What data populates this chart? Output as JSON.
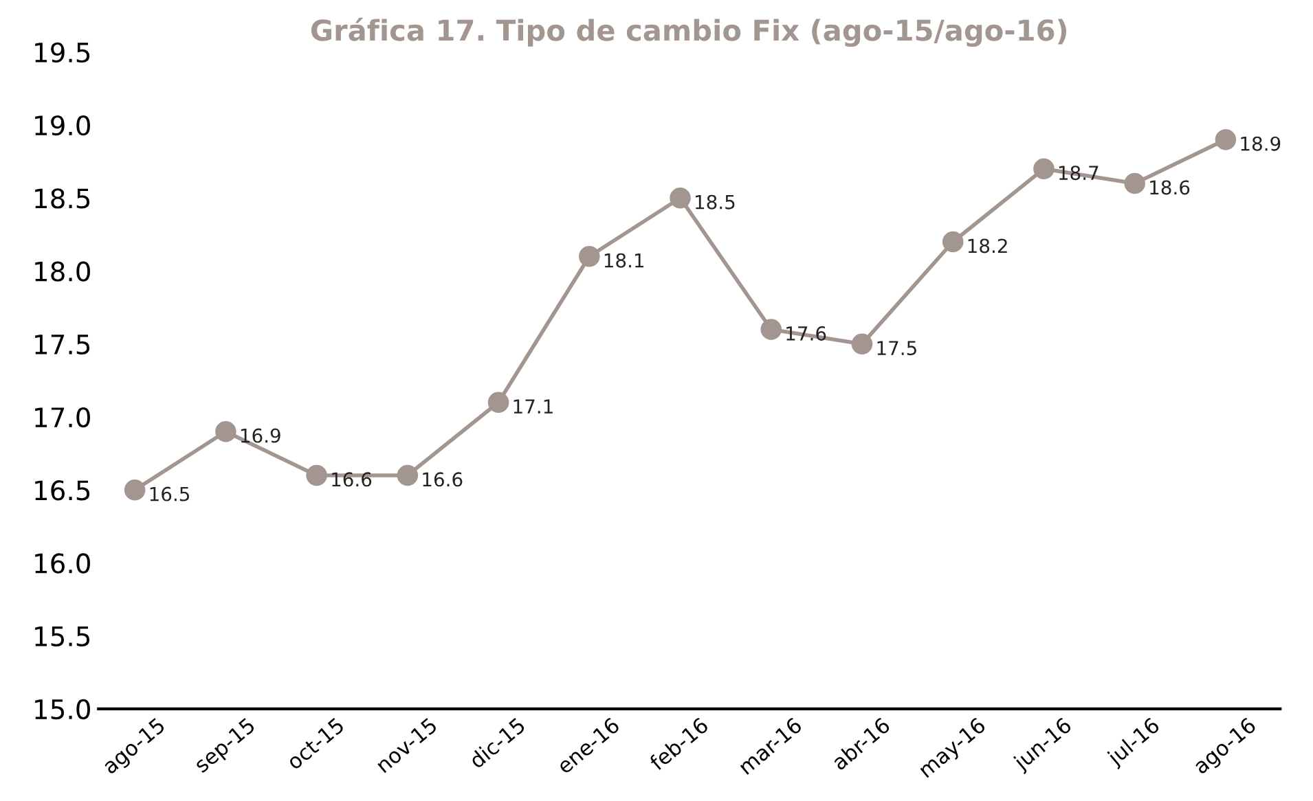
{
  "chart_data": {
    "type": "line",
    "title": "Gráfica 17. Tipo de cambio Fix (ago-15/ago-16)",
    "categories": [
      "ago-15",
      "sep-15",
      "oct-15",
      "nov-15",
      "dic-15",
      "ene-16",
      "feb-16",
      "mar-16",
      "abr-16",
      "may-16",
      "jun-16",
      "jul-16",
      "ago-16"
    ],
    "series": [
      {
        "color": "#a39590",
        "values": [
          16.5,
          16.9,
          16.6,
          16.6,
          17.1,
          18.1,
          18.5,
          17.6,
          17.5,
          18.2,
          18.7,
          18.6,
          18.9
        ]
      }
    ],
    "ylim": [
      15.0,
      19.5
    ],
    "yticks": [
      {
        "value": 15.0,
        "label": "15.0"
      },
      {
        "value": 15.5,
        "label": "15.5"
      },
      {
        "value": 16.0,
        "label": "16.0"
      },
      {
        "value": 16.5,
        "label": "16.5"
      },
      {
        "value": 17.0,
        "label": "17.0"
      },
      {
        "value": 17.5,
        "label": "17.5"
      },
      {
        "value": 18.0,
        "label": "18.0"
      },
      {
        "value": 18.5,
        "label": "18.5"
      },
      {
        "value": 19.0,
        "label": "19.0"
      },
      {
        "value": 19.5,
        "label": "19.5"
      }
    ],
    "marker": "circle",
    "line_style": "solid",
    "data_labels": true,
    "grid": false,
    "legend": false
  }
}
